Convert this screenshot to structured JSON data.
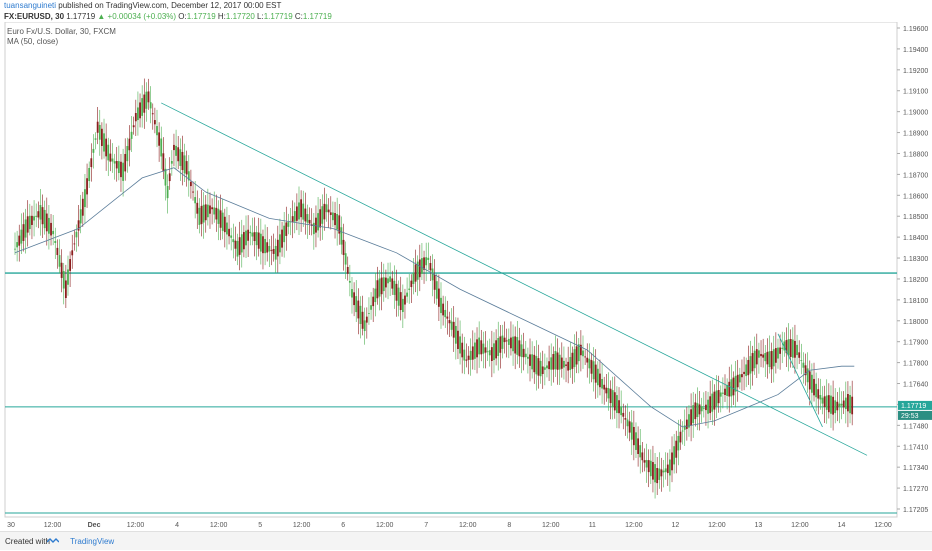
{
  "header": {
    "author": "tuansanguineti",
    "published": "published on TradingView.com, December 12, 2017 00:00 EST",
    "symbol": "FX:EURUSD, 30",
    "last": "1.17719",
    "change": "▲ +0.00034 (+0.03%)",
    "o_label": "O:",
    "o_value": "1.17719",
    "h_label": "H:",
    "h_value": "1.17720",
    "l_label": "L:",
    "l_value": "1.17719",
    "c_label": "C:",
    "c_value": "1.17719"
  },
  "legend": {
    "title": "Euro Fx/U.S. Dollar, 30, FXCM",
    "indicator": "MA (50, close)"
  },
  "price_label": {
    "value": "1.17719",
    "countdown": "29:53"
  },
  "footer": {
    "created": "Created with",
    "brand": "TradingView"
  },
  "colors": {
    "up": "#4caf50",
    "down": "#8b1d1d",
    "ma": "#5b7d9a",
    "trend": "#26a69a",
    "horizontal": "#26a69a",
    "accent": "#2e7bcf"
  },
  "chart_data": {
    "type": "candlestick",
    "y_ticks": [
      "1.19600",
      "1.19400",
      "1.19200",
      "1.19100",
      "1.19000",
      "1.18900",
      "1.18800",
      "1.18700",
      "1.18600",
      "1.18500",
      "1.18400",
      "1.18300",
      "1.18200",
      "1.18100",
      "1.18000",
      "1.17900",
      "1.17800",
      "1.17640",
      "1.17560",
      "1.17480",
      "1.17410",
      "1.17340",
      "1.17270",
      "1.17205"
    ],
    "x_ticks": [
      "30",
      "12:00",
      "Dec",
      "12:00",
      "4",
      "12:00",
      "5",
      "12:00",
      "6",
      "12:00",
      "7",
      "12:00",
      "8",
      "12:00",
      "11",
      "12:00",
      "12",
      "12:00",
      "13",
      "12:00",
      "14",
      "12:00"
    ],
    "price_path": [
      [
        0,
        1.185
      ],
      [
        2,
        1.1862
      ],
      [
        4,
        1.1868
      ],
      [
        6,
        1.1858
      ],
      [
        8,
        1.183
      ],
      [
        9,
        1.1848
      ],
      [
        11,
        1.1875
      ],
      [
        13,
        1.191
      ],
      [
        15,
        1.1895
      ],
      [
        17,
        1.1888
      ],
      [
        19,
        1.1915
      ],
      [
        21,
        1.1925
      ],
      [
        23,
        1.19
      ],
      [
        24,
        1.1878
      ],
      [
        25,
        1.19
      ],
      [
        27,
        1.189
      ],
      [
        29,
        1.1866
      ],
      [
        31,
        1.187
      ],
      [
        33,
        1.1862
      ],
      [
        35,
        1.185
      ],
      [
        37,
        1.1858
      ],
      [
        39,
        1.1852
      ],
      [
        41,
        1.1848
      ],
      [
        43,
        1.1862
      ],
      [
        45,
        1.187
      ],
      [
        47,
        1.186
      ],
      [
        49,
        1.187
      ],
      [
        51,
        1.1862
      ],
      [
        53,
        1.1828
      ],
      [
        55,
        1.1812
      ],
      [
        57,
        1.183
      ],
      [
        59,
        1.1835
      ],
      [
        61,
        1.1822
      ],
      [
        63,
        1.1838
      ],
      [
        65,
        1.1845
      ],
      [
        67,
        1.1822
      ],
      [
        69,
        1.181
      ],
      [
        71,
        1.1795
      ],
      [
        73,
        1.1802
      ],
      [
        75,
        1.1798
      ],
      [
        77,
        1.1805
      ],
      [
        79,
        1.1802
      ],
      [
        81,
        1.1795
      ],
      [
        83,
        1.179
      ],
      [
        85,
        1.1795
      ],
      [
        87,
        1.1792
      ],
      [
        89,
        1.18
      ],
      [
        91,
        1.179
      ],
      [
        93,
        1.178
      ],
      [
        95,
        1.1772
      ],
      [
        97,
        1.176
      ],
      [
        99,
        1.1745
      ],
      [
        101,
        1.1738
      ],
      [
        103,
        1.1742
      ],
      [
        105,
        1.176
      ],
      [
        107,
        1.177
      ],
      [
        109,
        1.1772
      ],
      [
        111,
        1.1778
      ],
      [
        113,
        1.1782
      ],
      [
        115,
        1.179
      ],
      [
        117,
        1.1798
      ],
      [
        119,
        1.1795
      ],
      [
        121,
        1.1802
      ],
      [
        123,
        1.18
      ],
      [
        125,
        1.1785
      ],
      [
        127,
        1.1775
      ],
      [
        129,
        1.1772
      ],
      [
        131,
        1.1774
      ],
      [
        132,
        1.17719
      ]
    ],
    "ma_path": [
      [
        0,
        1.1848
      ],
      [
        10,
        1.186
      ],
      [
        20,
        1.1885
      ],
      [
        25,
        1.189
      ],
      [
        30,
        1.1878
      ],
      [
        40,
        1.1865
      ],
      [
        50,
        1.186
      ],
      [
        60,
        1.1848
      ],
      [
        70,
        1.183
      ],
      [
        80,
        1.1815
      ],
      [
        90,
        1.18
      ],
      [
        100,
        1.1772
      ],
      [
        105,
        1.1762
      ],
      [
        110,
        1.1765
      ],
      [
        120,
        1.1778
      ],
      [
        125,
        1.179
      ],
      [
        130,
        1.1792
      ],
      [
        132,
        1.1792
      ]
    ],
    "ylim": [
      1.17205,
      1.196
    ],
    "trendlines": [
      {
        "from": [
          23,
          1.1922
        ],
        "to": [
          134,
          1.1748
        ]
      },
      {
        "from": [
          120,
          1.1808
        ],
        "to": [
          127,
          1.1762
        ]
      }
    ],
    "horizontal_lines": [
      1.1838,
      1.17719
    ]
  }
}
